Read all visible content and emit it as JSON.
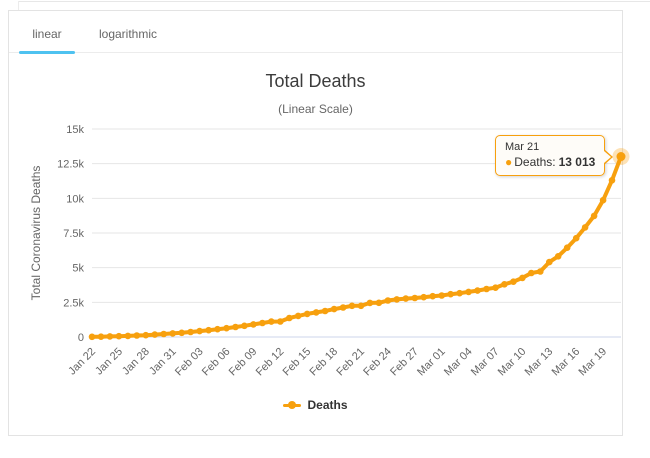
{
  "tabs": {
    "items": [
      {
        "label": "linear",
        "active": true
      },
      {
        "label": "logarithmic",
        "active": false
      }
    ]
  },
  "legend": {
    "label": "Deaths"
  },
  "tooltip": {
    "date": "Mar 21",
    "bullet_icon": "●",
    "series_label": "Deaths:",
    "value": "13 013"
  },
  "colors": {
    "series": "#f7a00e",
    "series_halo_opacity": 0.3,
    "tab_underline": "#4ec2f0",
    "grid": "#e6e6e6",
    "axis_line": "#ccd6eb",
    "tick_text": "#666666"
  },
  "chart_data": {
    "type": "line",
    "title": "Total Deaths",
    "subtitle": "(Linear Scale)",
    "yaxis_title": "Total Coronavirus Deaths",
    "ylim": [
      0,
      15000
    ],
    "grid": true,
    "legend_position": "bottom",
    "yticks": [
      {
        "value": 0,
        "label": "0"
      },
      {
        "value": 2500,
        "label": "2.5k"
      },
      {
        "value": 5000,
        "label": "5k"
      },
      {
        "value": 7500,
        "label": "7.5k"
      },
      {
        "value": 10000,
        "label": "10k"
      },
      {
        "value": 12500,
        "label": "12.5k"
      },
      {
        "value": 15000,
        "label": "15k"
      }
    ],
    "xtick_every": 3,
    "x": [
      "Jan 22",
      "Jan 23",
      "Jan 24",
      "Jan 25",
      "Jan 26",
      "Jan 27",
      "Jan 28",
      "Jan 29",
      "Jan 30",
      "Jan 31",
      "Feb 01",
      "Feb 02",
      "Feb 03",
      "Feb 04",
      "Feb 05",
      "Feb 06",
      "Feb 07",
      "Feb 08",
      "Feb 09",
      "Feb 10",
      "Feb 11",
      "Feb 12",
      "Feb 13",
      "Feb 14",
      "Feb 15",
      "Feb 16",
      "Feb 17",
      "Feb 18",
      "Feb 19",
      "Feb 20",
      "Feb 21",
      "Feb 22",
      "Feb 23",
      "Feb 24",
      "Feb 25",
      "Feb 26",
      "Feb 27",
      "Feb 28",
      "Feb 29",
      "Mar 01",
      "Mar 02",
      "Mar 03",
      "Mar 04",
      "Mar 05",
      "Mar 06",
      "Mar 07",
      "Mar 08",
      "Mar 09",
      "Mar 10",
      "Mar 11",
      "Mar 12",
      "Mar 13",
      "Mar 14",
      "Mar 15",
      "Mar 16",
      "Mar 17",
      "Mar 18",
      "Mar 19",
      "Mar 20",
      "Mar 21"
    ],
    "series": [
      {
        "name": "Deaths",
        "values": [
          17,
          25,
          41,
          56,
          80,
          106,
          132,
          170,
          213,
          259,
          304,
          362,
          426,
          492,
          564,
          634,
          719,
          806,
          906,
          1013,
          1113,
          1118,
          1371,
          1523,
          1669,
          1775,
          1873,
          2009,
          2126,
          2247,
          2251,
          2458,
          2469,
          2629,
          2708,
          2770,
          2814,
          2872,
          2941,
          2996,
          3085,
          3160,
          3254,
          3348,
          3460,
          3558,
          3802,
          3988,
          4262,
          4615,
          4720,
          5404,
          5819,
          6440,
          7126,
          7905,
          8733,
          9867,
          11299,
          13013
        ]
      }
    ]
  }
}
